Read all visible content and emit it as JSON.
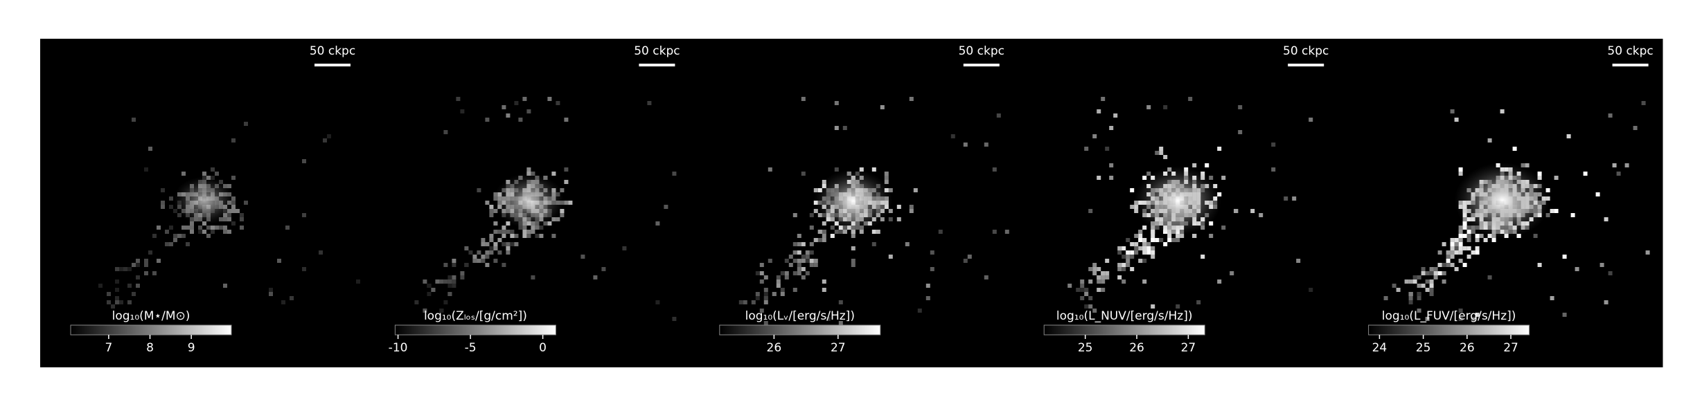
{
  "chart_data": [
    {
      "type": "image",
      "scale_label": "50 ckpc",
      "colorbar_label": "log₁₀(M⋆/M⊙)",
      "clim": [
        6.08,
        9.97
      ],
      "cticks": [
        7,
        8,
        9
      ]
    },
    {
      "type": "image",
      "scale_label": "50 ckpc",
      "colorbar_label": "log₁₀(Zₗₒₛ/[g/cm²])",
      "clim": [
        -10.2,
        0.9
      ],
      "cticks": [
        -10,
        -5,
        0
      ]
    },
    {
      "type": "image",
      "scale_label": "50 ckpc",
      "colorbar_label": "log₁₀(Lᵥ/[erg/s/Hz])",
      "clim": [
        25.15,
        27.66
      ],
      "cticks": [
        26,
        27
      ]
    },
    {
      "type": "image",
      "scale_label": "50 ckpc",
      "colorbar_label": "log₁₀(L_NUV/[erg/s/Hz])",
      "clim": [
        24.2,
        27.32
      ],
      "cticks": [
        25,
        26,
        27
      ]
    },
    {
      "type": "image",
      "scale_label": "50 ckpc",
      "colorbar_label": "log₁₀(L_FUV/[erg/s/Hz])",
      "clim": [
        23.75,
        27.42
      ],
      "cticks": [
        24,
        25,
        26,
        27
      ]
    }
  ]
}
